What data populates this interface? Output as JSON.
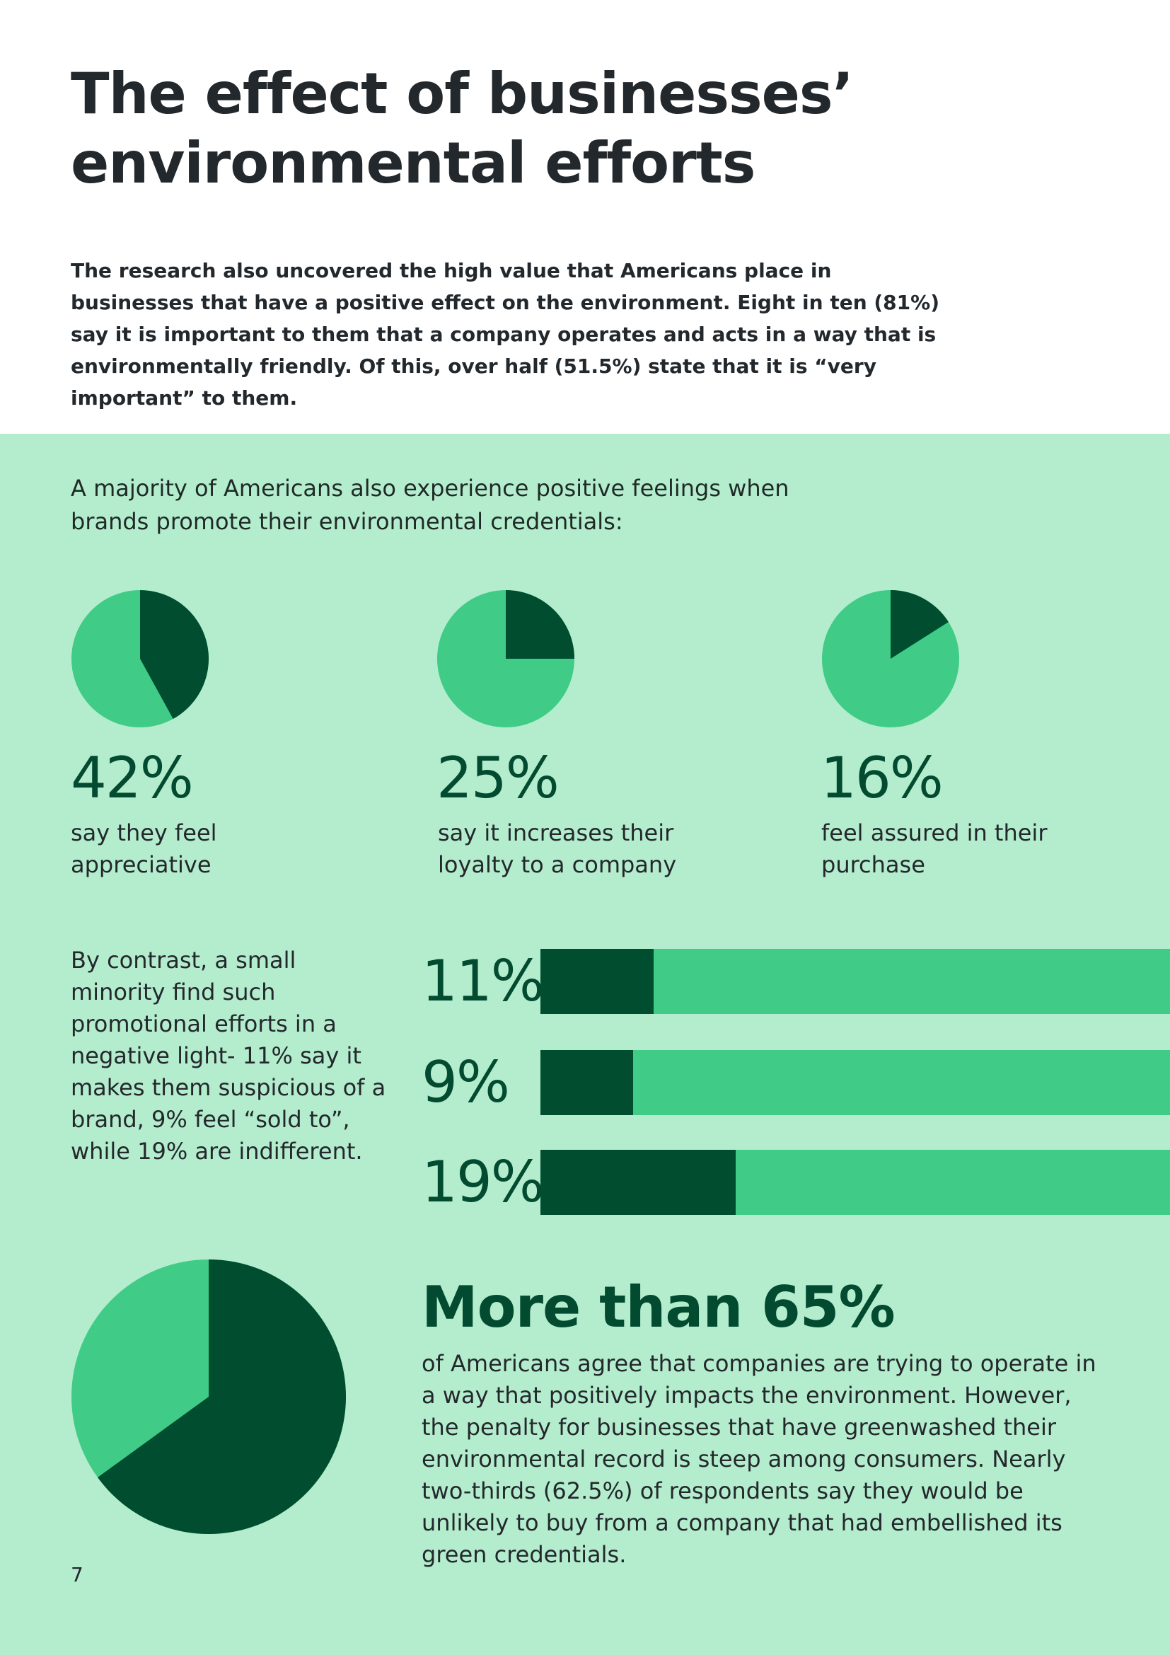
{
  "page": {
    "title_lines": [
      "The effect of businesses’",
      "environmental efforts"
    ],
    "intro": "The research also uncovered the high value that Americans place in businesses that have a positive effect on the environment. Eight in ten (81%) say it is important to them that a company operates and acts in a way that is environmentally friendly. Of this, over half (51.5%) state that it is “very important” to them.",
    "page_number": "7"
  },
  "colors": {
    "background_green": "#b4edcd",
    "light_green": "#40cc87",
    "dark_green": "#004d2f",
    "heading_text": "#23282d"
  },
  "positive": {
    "lead": "A majority of Americans also experience positive feelings when brands promote their environmental credentials:",
    "items": [
      {
        "pct": "42%",
        "label": "say they feel appreciative",
        "value": 42
      },
      {
        "pct": "25%",
        "label": "say it increases their loyalty to a company",
        "value": 25
      },
      {
        "pct": "16%",
        "label": "feel assured in their purchase",
        "value": 16
      }
    ]
  },
  "negative": {
    "text": "By contrast, a small minority find such promotional efforts in a negative light- 11% say it makes them suspicious of a brand, 9% feel “sold to”, while 19% are indifferent.",
    "bars": [
      {
        "pct": "11%",
        "value": 11
      },
      {
        "pct": "9%",
        "value": 9
      },
      {
        "pct": "19%",
        "value": 19
      }
    ]
  },
  "highlight": {
    "headline": "More than 65%",
    "text": "of Americans agree that companies are trying to operate in a way that positively impacts the environment. However, the penalty for businesses that have greenwashed their environmental record is steep among consumers. Nearly two-thirds (62.5%) of respondents say they would be unlikely to buy from a company that had embellished its green credentials.",
    "pie_value": 65
  },
  "chart_data": [
    {
      "type": "pie",
      "slices": [
        {
          "label": "say they feel appreciative",
          "value": 42
        },
        {
          "label": "",
          "value": 58
        }
      ]
    },
    {
      "type": "pie",
      "slices": [
        {
          "label": "say it increases their loyalty to a company",
          "value": 25
        },
        {
          "label": "",
          "value": 75
        }
      ]
    },
    {
      "type": "pie",
      "slices": [
        {
          "label": "feel assured in their purchase",
          "value": 16
        },
        {
          "label": "",
          "value": 84
        }
      ]
    },
    {
      "type": "bar",
      "categories": [
        "11%",
        "9%",
        "19%"
      ],
      "values": [
        11,
        9,
        19
      ],
      "ylim": [
        0,
        100
      ]
    },
    {
      "type": "pie",
      "slices": [
        {
          "label": "More than 65%",
          "value": 65
        },
        {
          "label": "",
          "value": 35
        }
      ]
    }
  ]
}
